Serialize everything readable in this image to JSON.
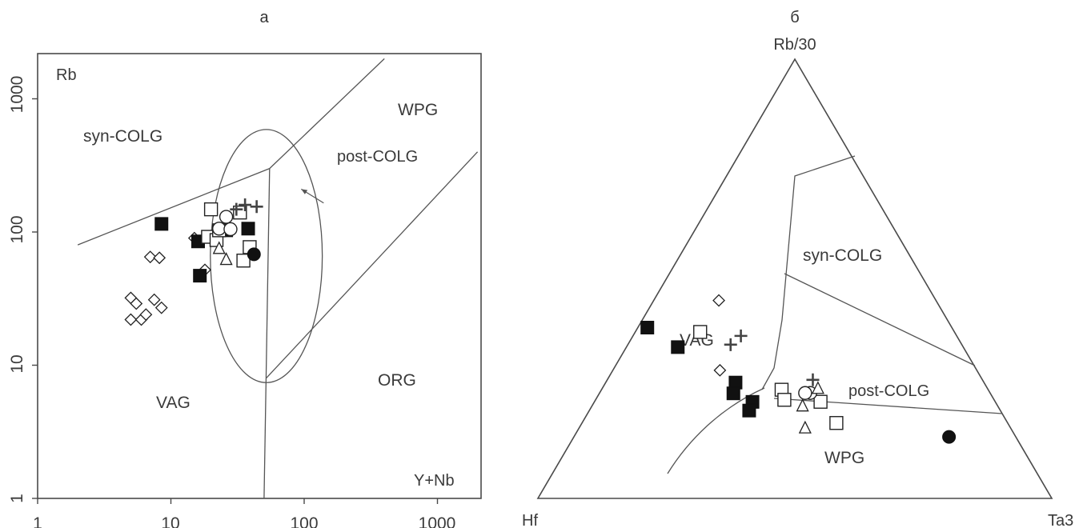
{
  "chart_data": [
    {
      "type": "scatter",
      "panel": "а",
      "scale": "log-log",
      "xlabel": "Y+Nb",
      "ylabel": "Rb",
      "xlim": [
        1,
        2000
      ],
      "ylim": [
        1,
        2000
      ],
      "x_ticks": [
        "1",
        "10",
        "100",
        "1000"
      ],
      "y_ticks": [
        "1",
        "10",
        "100",
        "1000"
      ],
      "fields": [
        "syn-COLG",
        "WPG",
        "post-COLG",
        "VAG",
        "ORG"
      ],
      "boundaries": [
        {
          "id": "syn-vag",
          "points": [
            [
              2,
              80
            ],
            [
              55,
              300
            ]
          ]
        },
        {
          "id": "syn-wpg",
          "points": [
            [
              55,
              300
            ],
            [
              400,
              2000
            ]
          ]
        },
        {
          "id": "vag-wpg",
          "points": [
            [
              55,
              300
            ],
            [
              50,
              1
            ]
          ]
        },
        {
          "id": "wpg-org",
          "points": [
            [
              52,
              8
            ],
            [
              2000,
              400
            ]
          ]
        },
        {
          "id": "post-colg-ellipse",
          "center": [
            52,
            66
          ],
          "rx_log": 0.42,
          "ry_log": 0.95
        }
      ],
      "arrow": {
        "from": [
          95,
          210
        ],
        "to": [
          140,
          165
        ]
      },
      "series": [
        {
          "marker": "diamond-open",
          "points": [
            [
              5,
              22
            ],
            [
              5,
              32
            ],
            [
              5.5,
              29
            ],
            [
              6,
              22
            ],
            [
              6.5,
              24
            ],
            [
              7,
              65
            ],
            [
              7.5,
              31
            ],
            [
              8.2,
              64
            ],
            [
              8.5,
              27
            ],
            [
              15,
              90
            ],
            [
              18,
              52
            ]
          ]
        },
        {
          "marker": "square-filled",
          "points": [
            [
              8.5,
              115
            ],
            [
              16,
              85
            ],
            [
              16.5,
              47
            ],
            [
              26,
              103
            ],
            [
              38,
              106
            ]
          ]
        },
        {
          "marker": "square-open",
          "points": [
            [
              19,
              92
            ],
            [
              20,
              148
            ],
            [
              22,
              87
            ],
            [
              23,
              103
            ],
            [
              33,
              140
            ],
            [
              35,
              61
            ],
            [
              39,
              77
            ]
          ]
        },
        {
          "marker": "circle-open",
          "points": [
            [
              26,
              130
            ],
            [
              23,
              106
            ],
            [
              28,
              105
            ]
          ]
        },
        {
          "marker": "circle-filled",
          "points": [
            [
              42,
              68
            ]
          ]
        },
        {
          "marker": "triangle-open",
          "points": [
            [
              23,
              75
            ],
            [
              26,
              62
            ]
          ]
        },
        {
          "marker": "plus",
          "points": [
            [
              31,
              148
            ],
            [
              36,
              160
            ],
            [
              44,
              155
            ]
          ]
        }
      ]
    },
    {
      "type": "scatter",
      "panel": "б",
      "scale": "ternary",
      "vertices": [
        "Rb/30",
        "Hf",
        "Ta3"
      ],
      "fields": [
        "syn-COLG",
        "VAG",
        "post-COLG",
        "WPG"
      ],
      "series": [
        {
          "marker": "diamond-open",
          "points": [
            [
              0.42,
              0.72,
              0.3
            ],
            [
              0.32,
              0.3,
              0.09
            ]
          ]
        },
        {
          "marker": "square-filled",
          "points": [
            [
              0.42,
              0.64,
              0.02
            ],
            [
              0.31,
              0.5,
              0.09
            ],
            [
              0.24,
              0.44,
              0.23
            ],
            [
              0.22,
              0.46,
              0.24
            ],
            [
              0.2,
              0.43,
              0.28
            ],
            [
              0.18,
              0.44,
              0.28
            ]
          ]
        },
        {
          "marker": "square-open",
          "points": [
            [
              0.36,
              0.47,
              0.12
            ],
            [
              0.24,
              0.39,
              0.34
            ],
            [
              0.22,
              0.4,
              0.36
            ],
            [
              0.22,
              0.34,
              0.44
            ],
            [
              0.17,
              0.33,
              0.49
            ]
          ]
        },
        {
          "marker": "circle-open",
          "points": [
            [
              0.24,
              0.35,
              0.41
            ],
            [
              0.24,
              0.36,
              0.4
            ]
          ]
        },
        {
          "marker": "circle-filled",
          "points": [
            [
              0.14,
              0.13,
              0.73
            ]
          ]
        },
        {
          "marker": "triangle-open",
          "points": [
            [
              0.25,
              0.33,
              0.42
            ],
            [
              0.21,
              0.38,
              0.41
            ],
            [
              0.16,
              0.4,
              0.44
            ]
          ]
        },
        {
          "marker": "plus",
          "points": [
            [
              0.37,
              0.42,
              0.21
            ],
            [
              0.35,
              0.45,
              0.2
            ],
            [
              0.27,
              0.33,
              0.4
            ]
          ]
        }
      ]
    }
  ],
  "labels": {
    "panel_a": "а",
    "panel_b": "б",
    "a_ylabel": "Rb",
    "a_xlabel": "Y+Nb",
    "a_syn_colg": "syn-COLG",
    "a_wpg": "WPG",
    "a_post_colg": "post-COLG",
    "a_vag": "VAG",
    "a_org": "ORG",
    "a_xtick_1": "1",
    "a_xtick_10": "10",
    "a_xtick_100": "100",
    "a_xtick_1000": "1000",
    "a_ytick_1": "1",
    "a_ytick_10": "10",
    "a_ytick_100": "100",
    "a_ytick_1000": "1000",
    "b_top": "Rb/30",
    "b_left": "Hf",
    "b_right": "Ta3",
    "b_syn_colg": "syn-COLG",
    "b_vag": "VAG",
    "b_post_colg": "post-COLG",
    "b_wpg": "WPG"
  }
}
